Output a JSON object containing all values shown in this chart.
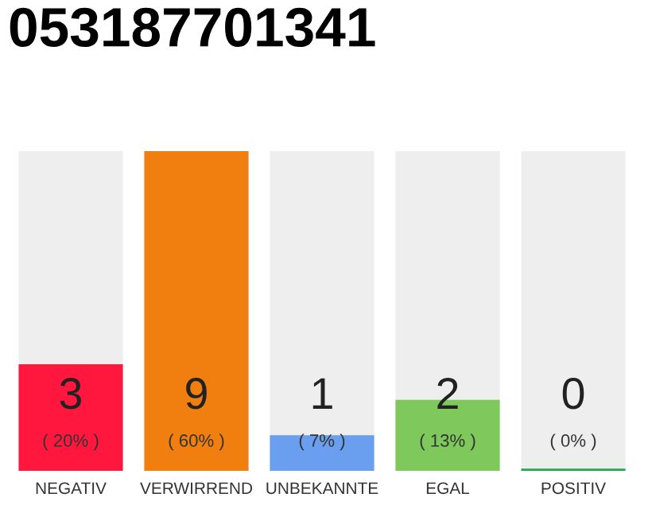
{
  "chart_data": {
    "type": "bar",
    "title": "053187701341",
    "categories": [
      "NEGATIV",
      "VERWIRREND",
      "UNBEKANNTE",
      "EGAL",
      "POSITIV"
    ],
    "values": [
      3,
      9,
      1,
      2,
      0
    ],
    "colors": [
      "#ff173d",
      "#f07f0f",
      "#6a9eee",
      "#7ec85c",
      "#22a84a"
    ],
    "value_labels": [
      "3\n( 20% )",
      "9\n( 60% )",
      "1\n( 7% )",
      "2\n( 13% )",
      "0\n( 0% )"
    ],
    "grid": false,
    "legend": false
  }
}
